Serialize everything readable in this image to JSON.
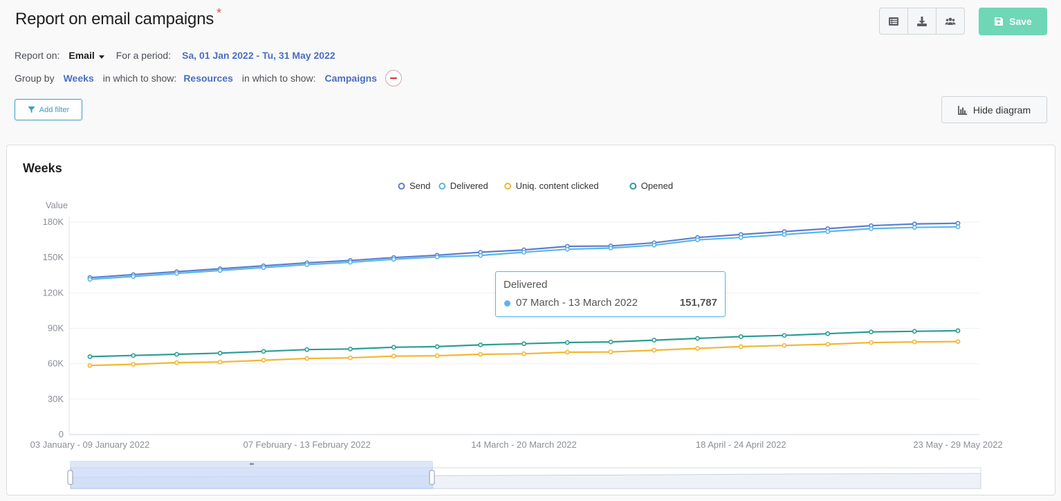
{
  "page": {
    "title": "Report on email campaigns",
    "required_mark": "*",
    "save_label": "Save",
    "report_on_label": "Report on:",
    "report_on_value": "Email",
    "period_label": "For a period:",
    "period_value": "Sa, 01 Jan 2022 - Tu, 31 May 2022",
    "group_by_label": "Group by",
    "group_by_value": "Weeks",
    "show_label_1": "in which to show:",
    "show_value_1": "Resources",
    "show_label_2": "in which to show:",
    "show_value_2": "Campaigns",
    "add_filter_label": "Add filter",
    "hide_diagram_label": "Hide diagram",
    "panel_title": "Weeks",
    "icons": [
      "list-icon",
      "download-icon",
      "users-icon",
      "floppy-icon",
      "filter-icon",
      "bar-chart-icon"
    ]
  },
  "tooltip": {
    "series": "Delivered",
    "label": "07 March - 13 March 2022",
    "value": "151,787",
    "color": "#5cb5e8"
  },
  "chart_data": {
    "type": "line",
    "title": "Weeks",
    "ylabel": "Value",
    "xlabel": "",
    "ylim": [
      0,
      180000
    ],
    "yticks": [
      "0",
      "30K",
      "60K",
      "90K",
      "120K",
      "150K",
      "180K"
    ],
    "grid": true,
    "legend_position": "top-center",
    "x_tick_labels": [
      "03 January - 09 January 2022",
      "07 February - 13 February 2022",
      "14 March - 20 March 2022",
      "18 April - 24 April 2022",
      "23 May - 29 May 2022"
    ],
    "x_tick_indices": [
      0,
      5,
      10,
      15,
      20
    ],
    "series": [
      {
        "name": "Send",
        "color": "#5b7fcc",
        "values": [
          133000,
          135500,
          138000,
          140500,
          143000,
          145500,
          147500,
          150000,
          152000,
          154500,
          156500,
          159500,
          159800,
          162500,
          167000,
          169500,
          172000,
          174500,
          177000,
          178500,
          179000
        ]
      },
      {
        "name": "Delivered",
        "color": "#5cb5e8",
        "values": [
          131500,
          134000,
          136500,
          139000,
          141500,
          144000,
          146000,
          148500,
          150500,
          151787,
          154500,
          157000,
          158000,
          160500,
          165000,
          167000,
          169500,
          172000,
          174500,
          175500,
          176000
        ]
      },
      {
        "name": "Uniq. content clicked",
        "color": "#f2b731",
        "values": [
          58500,
          59500,
          61000,
          61500,
          63000,
          64500,
          65000,
          66500,
          66800,
          68000,
          68500,
          69800,
          70000,
          71500,
          73000,
          74500,
          75500,
          76500,
          78000,
          78500,
          78800
        ]
      },
      {
        "name": "Opened",
        "color": "#2a9d94",
        "values": [
          66000,
          67000,
          68000,
          69000,
          70500,
          72000,
          72500,
          74000,
          74500,
          76000,
          77000,
          78000,
          78500,
          80000,
          81500,
          83000,
          84000,
          85500,
          87000,
          87500,
          88000
        ]
      }
    ]
  }
}
